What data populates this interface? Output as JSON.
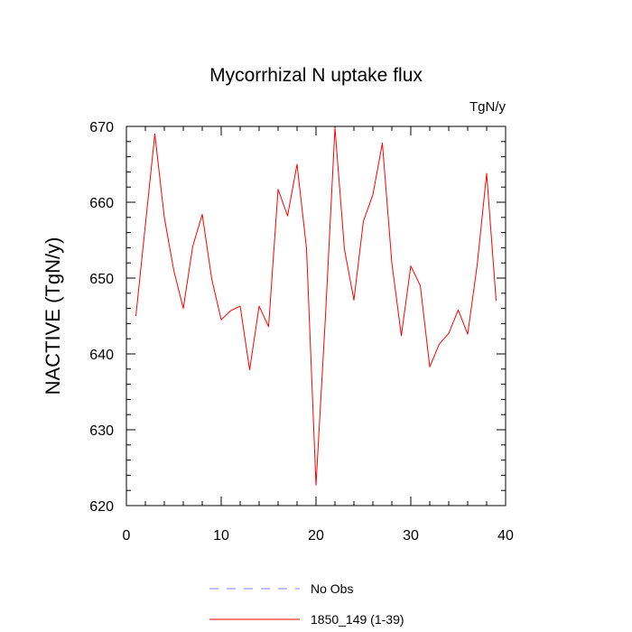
{
  "chart_data": {
    "type": "line",
    "title": "Mycorrhizal N uptake flux",
    "units_label": "TgN/y",
    "ylabel": "NACTIVE  (TgN/y)",
    "xlabel": "",
    "xlim": [
      0,
      40
    ],
    "ylim": [
      620,
      670
    ],
    "x_ticks": [
      0,
      10,
      20,
      30,
      40
    ],
    "y_ticks": [
      620,
      630,
      640,
      650,
      660,
      670
    ],
    "grid": false,
    "legend_position": "bottom",
    "series": [
      {
        "name": "1850_149 (1-39)",
        "color": "#ff0000",
        "dash": "solid",
        "x": [
          1,
          2,
          3,
          4,
          5,
          6,
          7,
          8,
          9,
          10,
          11,
          12,
          13,
          14,
          15,
          16,
          17,
          18,
          19,
          20,
          21,
          22,
          23,
          24,
          25,
          26,
          27,
          28,
          29,
          30,
          31,
          32,
          33,
          34,
          35,
          36,
          37,
          38,
          39
        ],
        "y": [
          645.0,
          657.0,
          669.0,
          658.0,
          651.0,
          646.0,
          654.2,
          658.4,
          649.9,
          644.5,
          645.7,
          646.3,
          637.9,
          646.3,
          643.6,
          661.7,
          658.2,
          665.0,
          653.9,
          622.7,
          645.0,
          669.8,
          653.8,
          647.1,
          657.5,
          661.0,
          667.8,
          652.0,
          642.4,
          651.6,
          649.0,
          638.3,
          641.3,
          642.7,
          645.8,
          642.6,
          651.7,
          663.8,
          647.0
        ]
      }
    ],
    "legend": [
      {
        "label": "No Obs",
        "color": "#7f7fff",
        "dash": "dashed"
      },
      {
        "label": "1850_149 (1-39)",
        "color": "#ff0000",
        "dash": "solid"
      }
    ]
  }
}
